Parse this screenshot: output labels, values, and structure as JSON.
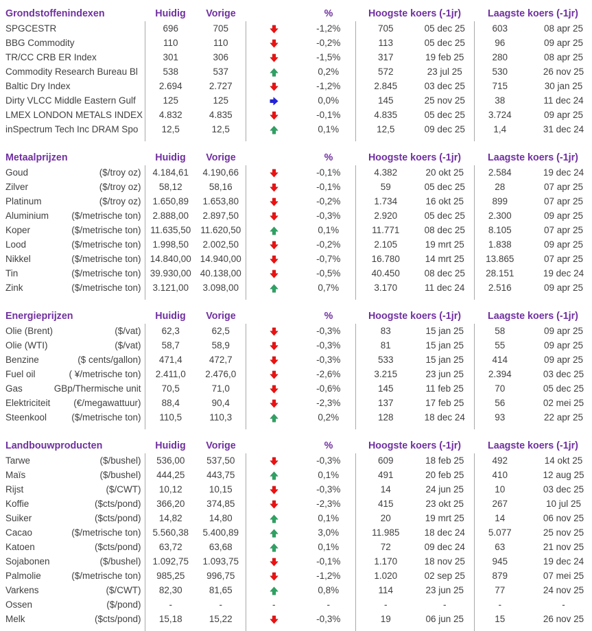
{
  "columns": {
    "huidig": "Huidig",
    "vorige": "Vorige",
    "pct": "%",
    "hoogste": "Hoogste koers (-1jr)",
    "laagste": "Laagste koers (-1jr)"
  },
  "glyphs": {
    "dash": "-"
  },
  "colors": {
    "header_purple": "#7030A0",
    "text": "#3f3f3f",
    "divider": "#a8a8a8",
    "arrow_up": "#2EA263",
    "arrow_down": "#EE1111",
    "arrow_flat": "#2323DD"
  },
  "sections": [
    {
      "title": "Grondstoffenindexen",
      "rows": [
        {
          "name": "SPGCESTR",
          "unit": "",
          "huidig": "696",
          "vorige": "705",
          "dir": "down",
          "pct": "-1,2%",
          "hoog": "705",
          "hoog_datum": "05 dec 25",
          "laag": "603",
          "laag_datum": "08 apr 25"
        },
        {
          "name": "BBG Commodity",
          "unit": "",
          "huidig": "110",
          "vorige": "110",
          "dir": "down",
          "pct": "-0,2%",
          "hoog": "113",
          "hoog_datum": "05 dec 25",
          "laag": "96",
          "laag_datum": "09 apr 25"
        },
        {
          "name": "TR/CC CRB ER Index",
          "unit": "",
          "huidig": "301",
          "vorige": "306",
          "dir": "down",
          "pct": "-1,5%",
          "hoog": "317",
          "hoog_datum": "19 feb 25",
          "laag": "280",
          "laag_datum": "08 apr 25"
        },
        {
          "name": "Commodity Research Bureau Bl",
          "unit": "",
          "huidig": "538",
          "vorige": "537",
          "dir": "up",
          "pct": "0,2%",
          "hoog": "572",
          "hoog_datum": "23 jul 25",
          "laag": "530",
          "laag_datum": "26 nov 25"
        },
        {
          "name": "Baltic Dry Index",
          "unit": "",
          "huidig": "2.694",
          "vorige": "2.727",
          "dir": "down",
          "pct": "-1,2%",
          "hoog": "2.845",
          "hoog_datum": "03 dec 25",
          "laag": "715",
          "laag_datum": "30 jan 25"
        },
        {
          "name": "Dirty VLCC Middle Eastern Gulf",
          "unit": "",
          "huidig": "125",
          "vorige": "125",
          "dir": "flat",
          "pct": "0,0%",
          "hoog": "145",
          "hoog_datum": "25 nov 25",
          "laag": "38",
          "laag_datum": "11 dec 24"
        },
        {
          "name": "LMEX LONDON METALS INDEX",
          "unit": "",
          "huidig": "4.832",
          "vorige": "4.835",
          "dir": "down",
          "pct": "-0,1%",
          "hoog": "4.835",
          "hoog_datum": "05 dec 25",
          "laag": "3.724",
          "laag_datum": "09 apr 25"
        },
        {
          "name": "inSpectrum Tech Inc DRAM Spo",
          "unit": "",
          "huidig": "12,5",
          "vorige": "12,5",
          "dir": "up",
          "pct": "0,1%",
          "hoog": "12,5",
          "hoog_datum": "09 dec 25",
          "laag": "1,4",
          "laag_datum": "31 dec 24"
        }
      ]
    },
    {
      "title": "Metaalprijzen",
      "rows": [
        {
          "name": "Goud",
          "unit": "($/troy oz)",
          "huidig": "4.184,61",
          "vorige": "4.190,66",
          "dir": "down",
          "pct": "-0,1%",
          "hoog": "4.382",
          "hoog_datum": "20 okt 25",
          "laag": "2.584",
          "laag_datum": "19 dec 24"
        },
        {
          "name": "Zilver",
          "unit": "($/troy oz)",
          "huidig": "58,12",
          "vorige": "58,16",
          "dir": "down",
          "pct": "-0,1%",
          "hoog": "59",
          "hoog_datum": "05 dec 25",
          "laag": "28",
          "laag_datum": "07 apr 25"
        },
        {
          "name": "Platinum",
          "unit": "($/troy oz)",
          "huidig": "1.650,89",
          "vorige": "1.653,80",
          "dir": "down",
          "pct": "-0,2%",
          "hoog": "1.734",
          "hoog_datum": "16 okt 25",
          "laag": "899",
          "laag_datum": "07 apr 25"
        },
        {
          "name": "Aluminium",
          "unit": "($/metrische ton)",
          "huidig": "2.888,00",
          "vorige": "2.897,50",
          "dir": "down",
          "pct": "-0,3%",
          "hoog": "2.920",
          "hoog_datum": "05 dec 25",
          "laag": "2.300",
          "laag_datum": "09 apr 25"
        },
        {
          "name": "Koper",
          "unit": "($/metrische ton)",
          "huidig": "11.635,50",
          "vorige": "11.620,50",
          "dir": "up",
          "pct": "0,1%",
          "hoog": "11.771",
          "hoog_datum": "08 dec 25",
          "laag": "8.105",
          "laag_datum": "07 apr 25"
        },
        {
          "name": "Lood",
          "unit": "($/metrische ton)",
          "huidig": "1.998,50",
          "vorige": "2.002,50",
          "dir": "down",
          "pct": "-0,2%",
          "hoog": "2.105",
          "hoog_datum": "19 mrt 25",
          "laag": "1.838",
          "laag_datum": "09 apr 25"
        },
        {
          "name": "Nikkel",
          "unit": "($/metrische ton)",
          "huidig": "14.840,00",
          "vorige": "14.940,00",
          "dir": "down",
          "pct": "-0,7%",
          "hoog": "16.780",
          "hoog_datum": "14 mrt 25",
          "laag": "13.865",
          "laag_datum": "07 apr 25"
        },
        {
          "name": "Tin",
          "unit": "($/metrische ton)",
          "huidig": "39.930,00",
          "vorige": "40.138,00",
          "dir": "down",
          "pct": "-0,5%",
          "hoog": "40.450",
          "hoog_datum": "08 dec 25",
          "laag": "28.151",
          "laag_datum": "19 dec 24"
        },
        {
          "name": "Zink",
          "unit": "($/metrische ton)",
          "huidig": "3.121,00",
          "vorige": "3.098,00",
          "dir": "up",
          "pct": "0,7%",
          "hoog": "3.170",
          "hoog_datum": "11 dec 24",
          "laag": "2.516",
          "laag_datum": "09 apr 25"
        }
      ]
    },
    {
      "title": "Energieprijzen",
      "rows": [
        {
          "name": "Olie (Brent)",
          "unit": "($/vat)",
          "huidig": "62,3",
          "vorige": "62,5",
          "dir": "down",
          "pct": "-0,3%",
          "hoog": "83",
          "hoog_datum": "15 jan 25",
          "laag": "58",
          "laag_datum": "09 apr 25"
        },
        {
          "name": "Olie (WTI)",
          "unit": "($/vat)",
          "huidig": "58,7",
          "vorige": "58,9",
          "dir": "down",
          "pct": "-0,3%",
          "hoog": "81",
          "hoog_datum": "15 jan 25",
          "laag": "55",
          "laag_datum": "09 apr 25"
        },
        {
          "name": "Benzine",
          "unit": "($ cents/gallon)",
          "huidig": "471,4",
          "vorige": "472,7",
          "dir": "down",
          "pct": "-0,3%",
          "hoog": "533",
          "hoog_datum": "15 jan 25",
          "laag": "414",
          "laag_datum": "09 apr 25"
        },
        {
          "name": "Fuel oil",
          "unit": "( ¥/metrische ton)",
          "huidig": "2.411,0",
          "vorige": "2.476,0",
          "dir": "down",
          "pct": "-2,6%",
          "hoog": "3.215",
          "hoog_datum": "23 jun 25",
          "laag": "2.394",
          "laag_datum": "03 dec 25"
        },
        {
          "name": "Gas",
          "unit": "GBp/Thermische unit",
          "huidig": "70,5",
          "vorige": "71,0",
          "dir": "down",
          "pct": "-0,6%",
          "hoog": "145",
          "hoog_datum": "11 feb 25",
          "laag": "70",
          "laag_datum": "05 dec 25"
        },
        {
          "name": "Elektriciteit",
          "unit": "(€/megawattuur)",
          "huidig": "88,4",
          "vorige": "90,4",
          "dir": "down",
          "pct": "-2,3%",
          "hoog": "137",
          "hoog_datum": "17 feb 25",
          "laag": "56",
          "laag_datum": "02 mei 25"
        },
        {
          "name": "Steenkool",
          "unit": "($/metrische ton)",
          "huidig": "110,5",
          "vorige": "110,3",
          "dir": "up",
          "pct": "0,2%",
          "hoog": "128",
          "hoog_datum": "18 dec 24",
          "laag": "93",
          "laag_datum": "22 apr 25"
        }
      ]
    },
    {
      "title": "Landbouwproducten",
      "rows": [
        {
          "name": "Tarwe",
          "unit": "($/bushel)",
          "huidig": "536,00",
          "vorige": "537,50",
          "dir": "down",
          "pct": "-0,3%",
          "hoog": "609",
          "hoog_datum": "18 feb 25",
          "laag": "492",
          "laag_datum": "14 okt 25"
        },
        {
          "name": "Maïs",
          "unit": "($/bushel)",
          "huidig": "444,25",
          "vorige": "443,75",
          "dir": "up",
          "pct": "0,1%",
          "hoog": "491",
          "hoog_datum": "20 feb 25",
          "laag": "410",
          "laag_datum": "12 aug 25"
        },
        {
          "name": "Rijst",
          "unit": "($/CWT)",
          "huidig": "10,12",
          "vorige": "10,15",
          "dir": "down",
          "pct": "-0,3%",
          "hoog": "14",
          "hoog_datum": "24 jun 25",
          "laag": "10",
          "laag_datum": "03 dec 25"
        },
        {
          "name": "Koffie",
          "unit": "($cts/pond)",
          "huidig": "366,20",
          "vorige": "374,85",
          "dir": "down",
          "pct": "-2,3%",
          "hoog": "415",
          "hoog_datum": "23 okt 25",
          "laag": "267",
          "laag_datum": "10 jul 25"
        },
        {
          "name": "Suiker",
          "unit": "($cts/pond)",
          "huidig": "14,82",
          "vorige": "14,80",
          "dir": "up",
          "pct": "0,1%",
          "hoog": "20",
          "hoog_datum": "19 mrt 25",
          "laag": "14",
          "laag_datum": "06 nov 25"
        },
        {
          "name": "Cacao",
          "unit": "($/metrische ton)",
          "huidig": "5.560,38",
          "vorige": "5.400,89",
          "dir": "up",
          "pct": "3,0%",
          "hoog": "11.985",
          "hoog_datum": "18 dec 24",
          "laag": "5.077",
          "laag_datum": "25 nov 25"
        },
        {
          "name": "Katoen",
          "unit": "($cts/pond)",
          "huidig": "63,72",
          "vorige": "63,68",
          "dir": "up",
          "pct": "0,1%",
          "hoog": "72",
          "hoog_datum": "09 dec 24",
          "laag": "63",
          "laag_datum": "21 nov 25"
        },
        {
          "name": "Sojabonen",
          "unit": "($/bushel)",
          "huidig": "1.092,75",
          "vorige": "1.093,75",
          "dir": "down",
          "pct": "-0,1%",
          "hoog": "1.170",
          "hoog_datum": "18 nov 25",
          "laag": "945",
          "laag_datum": "19 dec 24"
        },
        {
          "name": "Palmolie",
          "unit": "($/metrische ton)",
          "huidig": "985,25",
          "vorige": "996,75",
          "dir": "down",
          "pct": "-1,2%",
          "hoog": "1.020",
          "hoog_datum": "02 sep 25",
          "laag": "879",
          "laag_datum": "07 mei 25"
        },
        {
          "name": "Varkens",
          "unit": "($/CWT)",
          "huidig": "82,30",
          "vorige": "81,65",
          "dir": "up",
          "pct": "0,8%",
          "hoog": "114",
          "hoog_datum": "23 jun 25",
          "laag": "77",
          "laag_datum": "24 nov 25"
        },
        {
          "name": "Ossen",
          "unit": "($/pond)",
          "huidig": "-",
          "vorige": "-",
          "dir": "dash",
          "pct": "-",
          "hoog": "-",
          "hoog_datum": "-",
          "laag": "-",
          "laag_datum": "-"
        },
        {
          "name": "Melk",
          "unit": "($cts/pond)",
          "huidig": "15,18",
          "vorige": "15,22",
          "dir": "down",
          "pct": "-0,3%",
          "hoog": "19",
          "hoog_datum": "06 jun 25",
          "laag": "15",
          "laag_datum": "26 nov 25"
        }
      ]
    }
  ]
}
